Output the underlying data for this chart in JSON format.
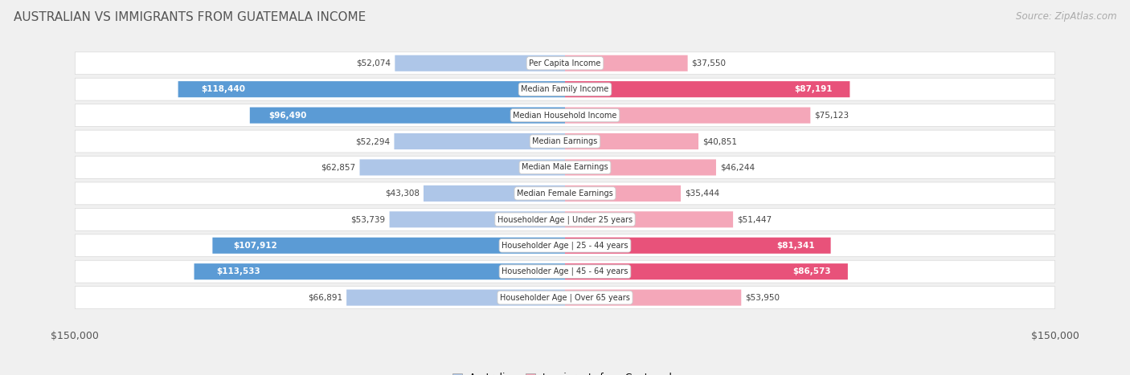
{
  "title": "AUSTRALIAN VS IMMIGRANTS FROM GUATEMALA INCOME",
  "source": "Source: ZipAtlas.com",
  "max_value": 150000,
  "categories": [
    "Per Capita Income",
    "Median Family Income",
    "Median Household Income",
    "Median Earnings",
    "Median Male Earnings",
    "Median Female Earnings",
    "Householder Age | Under 25 years",
    "Householder Age | 25 - 44 years",
    "Householder Age | 45 - 64 years",
    "Householder Age | Over 65 years"
  ],
  "australian_values": [
    52074,
    118440,
    96490,
    52294,
    62857,
    43308,
    53739,
    107912,
    113533,
    66891
  ],
  "immigrant_values": [
    37550,
    87191,
    75123,
    40851,
    46244,
    35444,
    51447,
    81341,
    86573,
    53950
  ],
  "australian_labels": [
    "$52,074",
    "$118,440",
    "$96,490",
    "$52,294",
    "$62,857",
    "$43,308",
    "$53,739",
    "$107,912",
    "$113,533",
    "$66,891"
  ],
  "immigrant_labels": [
    "$37,550",
    "$87,191",
    "$75,123",
    "$40,851",
    "$46,244",
    "$35,444",
    "$51,447",
    "$81,341",
    "$86,573",
    "$53,950"
  ],
  "australian_color_light": "#aec6e8",
  "australian_color_dark": "#5b9bd5",
  "immigrant_color_light": "#f4a7b9",
  "immigrant_color_dark": "#e8527a",
  "background_color": "#f0f0f0",
  "row_bg_color": "#ffffff",
  "aus_inside_threshold": 80000,
  "imm_inside_threshold": 80000,
  "legend_label_aus": "Australian",
  "legend_label_imm": "Immigrants from Guatemala",
  "x_axis_label_left": "$150,000",
  "x_axis_label_right": "$150,000",
  "title_fontsize": 11,
  "source_fontsize": 8.5,
  "label_fontsize": 7.5,
  "cat_fontsize": 7.0
}
